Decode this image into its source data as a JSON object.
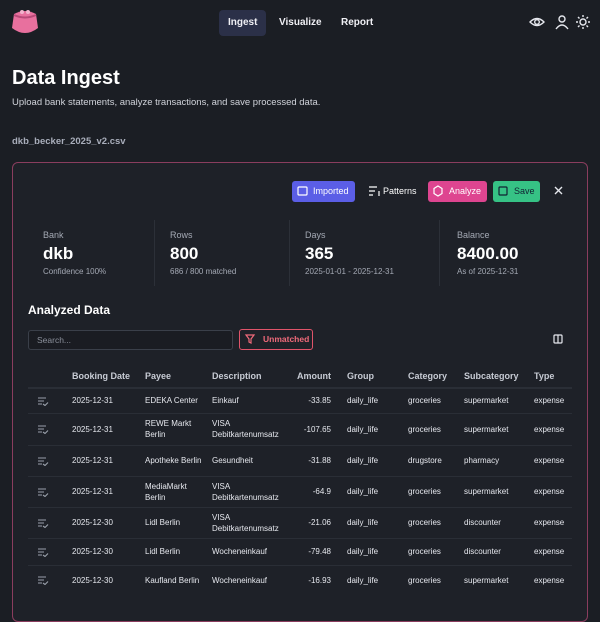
{
  "nav": {
    "items": [
      "Ingest",
      "Visualize",
      "Report"
    ]
  },
  "header": {
    "title": "Data Ingest",
    "subtitle": "Upload bank statements, analyze transactions, and save processed data."
  },
  "file": "dkb_becker_2025_v2.csv",
  "toolbar": {
    "buttons": [
      "Imported",
      "Patterns",
      "Analyze",
      "Save"
    ]
  },
  "stats": [
    {
      "label": "Bank",
      "value": "dkb",
      "note": "Confidence 100%"
    },
    {
      "label": "Rows",
      "value": 800,
      "note": "686 / 800 matched"
    },
    {
      "label": "Days",
      "value": 365,
      "note": "2025-01-01 - 2025-12-31"
    },
    {
      "label": "Balance",
      "value": "8400.00",
      "note": "As of 2025-12-31"
    }
  ],
  "analyzed": {
    "title": "Analyzed Data",
    "search_placeholder": "Search...",
    "filter": "Unmatched"
  },
  "table": {
    "columns": [
      "Booking Date",
      "Payee",
      "Description",
      "Amount",
      "Group",
      "Category",
      "Subcategory",
      "Type"
    ],
    "rows": [
      [
        "2025-12-31",
        "EDEKA Center",
        "Einkauf",
        -33.85,
        "daily_life",
        "groceries",
        "supermarket",
        "expense"
      ],
      [
        "2025-12-31",
        "REWE Markt Berlin",
        "VISA Debitkartenumsatz",
        -107.65,
        "daily_life",
        "groceries",
        "supermarket",
        "expense"
      ],
      [
        "2025-12-31",
        "Apotheke Berlin",
        "Gesundheit",
        -31.88,
        "daily_life",
        "drugstore",
        "pharmacy",
        "expense"
      ],
      [
        "2025-12-31",
        "MediaMarkt Berlin",
        "VISA Debitkartenumsatz",
        -64.9,
        "daily_life",
        "groceries",
        "supermarket",
        "expense"
      ],
      [
        "2025-12-30",
        "Lidl Berlin",
        "VISA Debitkartenumsatz",
        -21.06,
        "daily_life",
        "groceries",
        "discounter",
        "expense"
      ],
      [
        "2025-12-30",
        "Lidl Berlin",
        "Wocheneinkauf",
        -79.48,
        "daily_life",
        "groceries",
        "discounter",
        "expense"
      ],
      [
        "2025-12-30",
        "Kaufland Berlin",
        "Wocheneinkauf",
        -16.93,
        "daily_life",
        "groceries",
        "supermarket",
        "expense"
      ]
    ]
  }
}
